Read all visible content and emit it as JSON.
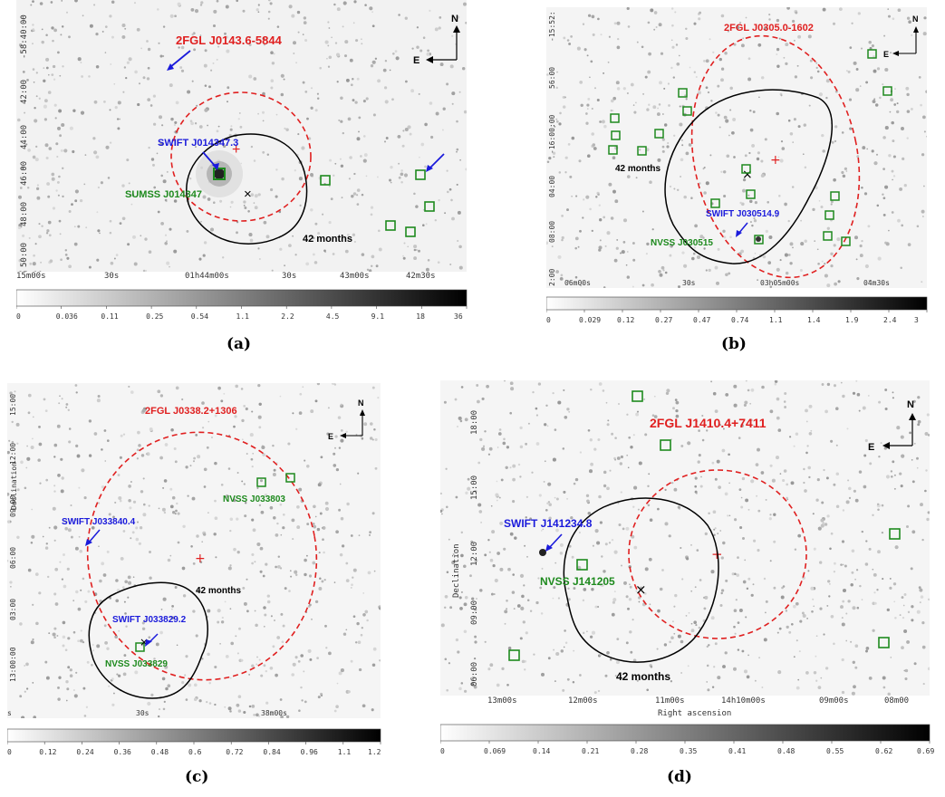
{
  "figure": {
    "panels": [
      {
        "tag": "(a)",
        "fgl_name": "2FGL J0143.6-5844",
        "swift_label": "SWIFT J014347.3",
        "counterpart_label": "SUMSS J014347",
        "exposure_label": "42 months",
        "ra_ticks": [
          "15m00s",
          "30s",
          "01h44m00s",
          "30s",
          "43m00s",
          "42m30s"
        ],
        "dec_ticks": [
          "-58:40:00",
          "42:00",
          "44:00",
          "46:00",
          "48:00",
          "50:00"
        ],
        "cbar_ticks": [
          "0",
          "0.036",
          "0.11",
          "0.25",
          "0.54",
          "1.1",
          "2.2",
          "4.5",
          "9.1",
          "18",
          "36"
        ],
        "axis_x": "",
        "axis_y": ""
      },
      {
        "tag": "(b)",
        "fgl_name": "2FGL J0305.0-1602",
        "swift_label": "SWIFT J030514.9",
        "counterpart_label": "NVSS J030515",
        "exposure_label": "42 months",
        "ra_ticks": [
          "06m00s",
          "30s",
          "03h05m00s",
          "04m30s"
        ],
        "dec_ticks": [
          "-15:52:",
          "56:00",
          "-16:00:00",
          "04:00",
          "08:00",
          "2:00"
        ],
        "cbar_ticks": [
          "0",
          "0.029",
          "0.12",
          "0.27",
          "0.47",
          "0.74",
          "1.1",
          "1.4",
          "1.9",
          "2.4",
          "3"
        ],
        "axis_x": "",
        "axis_y": ""
      },
      {
        "tag": "(c)",
        "fgl_name": "2FGL J0338.2+1306",
        "swift_label": "SWIFT J033840.4",
        "swift_label_2": "SWIFT J033829.2",
        "counterpart_label": "NVSS J033829",
        "counterpart_label_2": "NVSS J033803",
        "exposure_label": "42 months",
        "ra_ticks": [
          "s",
          "30s",
          "38m00s"
        ],
        "dec_ticks": [
          "15:00",
          "12:00",
          "09:00",
          "06:00",
          "03:00",
          "13:00:00"
        ],
        "cbar_ticks": [
          "0",
          "0.12",
          "0.24",
          "0.36",
          "0.48",
          "0.6",
          "0.72",
          "0.84",
          "0.96",
          "1.1",
          "1.2"
        ],
        "axis_x": "",
        "axis_y": "Declination"
      },
      {
        "tag": "(d)",
        "fgl_name": "2FGL J1410.4+7411",
        "swift_label": "SWIFT J141234.8",
        "counterpart_label": "NVSS J141205",
        "exposure_label": "42 months",
        "ra_ticks": [
          "13m00s",
          "12m00s",
          "11m00s",
          "14h10m00s",
          "09m00s",
          "08m00"
        ],
        "dec_ticks": [
          "18:00",
          "15:00",
          "12:00",
          "09:00",
          "06:00"
        ],
        "cbar_ticks": [
          "0",
          "0.069",
          "0.14",
          "0.21",
          "0.28",
          "0.35",
          "0.41",
          "0.48",
          "0.55",
          "0.62",
          "0.69"
        ],
        "axis_x": "Right ascension",
        "axis_y": "Declination"
      }
    ],
    "compass": {
      "north": "N",
      "east": "E"
    },
    "colors": {
      "fgl_ellipse": "#e02020",
      "swift_label": "#1a1adb",
      "counterpart_label": "#1e8a1e",
      "contour": "#000000",
      "background": "#f3f3f3"
    }
  }
}
